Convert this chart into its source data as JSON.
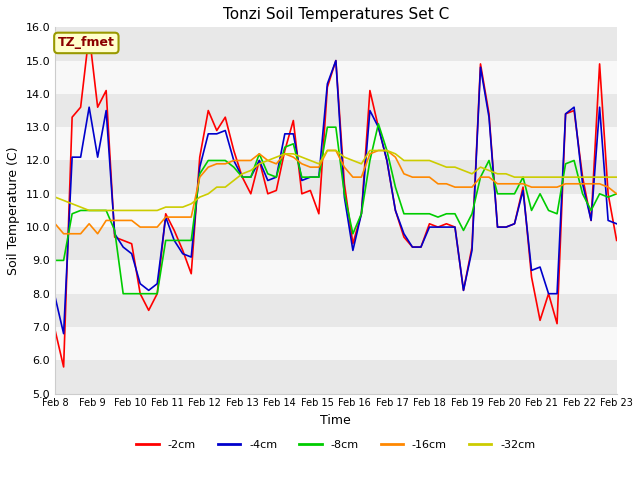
{
  "title": "Tonzi Soil Temperatures Set C",
  "xlabel": "Time",
  "ylabel": "Soil Temperature (C)",
  "ylim": [
    5.0,
    16.0
  ],
  "yticks": [
    5.0,
    6.0,
    7.0,
    8.0,
    9.0,
    10.0,
    11.0,
    12.0,
    13.0,
    14.0,
    15.0,
    16.0
  ],
  "xtick_labels": [
    "Feb 8",
    "Feb 9",
    "Feb 10",
    "Feb 11",
    "Feb 12",
    "Feb 13",
    "Feb 14",
    "Feb 15",
    "Feb 16",
    "Feb 17",
    "Feb 18",
    "Feb 19",
    "Feb 20",
    "Feb 21",
    "Feb 22",
    "Feb 23"
  ],
  "fig_bg_color": "#ffffff",
  "plot_bg_color": "#ffffff",
  "band_color1": "#e8e8e8",
  "band_color2": "#f8f8f8",
  "annotation_text": "TZ_fmet",
  "annotation_bg": "#ffffcc",
  "annotation_fg": "#8b0000",
  "annotation_border": "#999900",
  "legend_entries": [
    "-2cm",
    "-4cm",
    "-8cm",
    "-16cm",
    "-32cm"
  ],
  "legend_colors": [
    "#ff0000",
    "#0000cc",
    "#00cc00",
    "#ff8800",
    "#cccc00"
  ],
  "series": {
    "neg2cm": [
      6.9,
      5.8,
      13.3,
      13.6,
      15.8,
      13.6,
      14.1,
      9.7,
      9.6,
      9.5,
      8.0,
      7.5,
      8.0,
      10.4,
      9.9,
      9.3,
      8.6,
      12.1,
      13.5,
      12.9,
      13.3,
      12.3,
      11.5,
      11.0,
      12.0,
      11.0,
      11.1,
      12.3,
      13.2,
      11.0,
      11.1,
      10.4,
      14.2,
      15.0,
      11.3,
      9.5,
      10.4,
      14.1,
      13.0,
      12.0,
      10.5,
      9.7,
      9.4,
      9.4,
      10.1,
      10.0,
      10.1,
      10.0,
      8.1,
      9.4,
      14.9,
      13.4,
      10.0,
      10.0,
      10.1,
      11.2,
      8.5,
      7.2,
      8.0,
      7.1,
      13.4,
      13.5,
      11.5,
      10.2,
      14.9,
      11.0,
      9.6
    ],
    "neg4cm": [
      7.9,
      6.8,
      12.1,
      12.1,
      13.6,
      12.1,
      13.5,
      9.8,
      9.4,
      9.2,
      8.3,
      8.1,
      8.3,
      10.3,
      9.6,
      9.2,
      9.1,
      11.8,
      12.8,
      12.8,
      12.9,
      12.0,
      11.5,
      11.5,
      12.0,
      11.4,
      11.5,
      12.8,
      12.8,
      11.4,
      11.5,
      11.5,
      14.3,
      15.0,
      10.9,
      9.3,
      10.4,
      13.5,
      13.0,
      12.0,
      10.5,
      9.8,
      9.4,
      9.4,
      10.0,
      10.0,
      10.0,
      10.0,
      8.1,
      9.3,
      14.8,
      13.3,
      10.0,
      10.0,
      10.1,
      11.1,
      8.7,
      8.8,
      8.0,
      8.0,
      13.4,
      13.6,
      11.3,
      10.2,
      13.6,
      10.2,
      10.1
    ],
    "neg8cm": [
      9.0,
      9.0,
      10.4,
      10.5,
      10.5,
      10.5,
      10.5,
      9.9,
      8.0,
      8.0,
      8.0,
      8.0,
      8.0,
      9.6,
      9.6,
      9.6,
      9.6,
      11.6,
      12.0,
      12.0,
      12.0,
      11.8,
      11.5,
      11.5,
      12.2,
      11.6,
      11.5,
      12.4,
      12.5,
      11.5,
      11.5,
      11.5,
      13.0,
      13.0,
      11.0,
      9.8,
      10.4,
      12.0,
      13.1,
      12.3,
      11.2,
      10.4,
      10.4,
      10.4,
      10.4,
      10.3,
      10.4,
      10.4,
      9.9,
      10.4,
      11.5,
      12.0,
      11.0,
      11.0,
      11.0,
      11.5,
      10.5,
      11.0,
      10.5,
      10.4,
      11.9,
      12.0,
      11.0,
      10.5,
      11.0,
      10.9,
      11.0
    ],
    "neg16cm": [
      10.1,
      9.8,
      9.8,
      9.8,
      10.1,
      9.8,
      10.2,
      10.2,
      10.2,
      10.2,
      10.0,
      10.0,
      10.0,
      10.3,
      10.3,
      10.3,
      10.3,
      11.5,
      11.8,
      11.9,
      11.9,
      12.0,
      12.0,
      12.0,
      12.2,
      12.0,
      11.9,
      12.2,
      12.1,
      11.9,
      11.8,
      11.8,
      12.3,
      12.3,
      11.8,
      11.5,
      11.5,
      12.2,
      12.3,
      12.3,
      12.1,
      11.6,
      11.5,
      11.5,
      11.5,
      11.3,
      11.3,
      11.2,
      11.2,
      11.2,
      11.5,
      11.5,
      11.3,
      11.3,
      11.3,
      11.3,
      11.2,
      11.2,
      11.2,
      11.2,
      11.3,
      11.3,
      11.3,
      11.3,
      11.3,
      11.2,
      11.0
    ],
    "neg32cm": [
      10.9,
      10.8,
      10.7,
      10.6,
      10.5,
      10.5,
      10.5,
      10.5,
      10.5,
      10.5,
      10.5,
      10.5,
      10.5,
      10.6,
      10.6,
      10.6,
      10.7,
      10.9,
      11.0,
      11.2,
      11.2,
      11.4,
      11.6,
      11.7,
      11.9,
      12.0,
      12.1,
      12.2,
      12.2,
      12.1,
      12.0,
      11.9,
      12.3,
      12.3,
      12.1,
      12.0,
      11.9,
      12.3,
      12.3,
      12.3,
      12.2,
      12.0,
      12.0,
      12.0,
      12.0,
      11.9,
      11.8,
      11.8,
      11.7,
      11.6,
      11.8,
      11.7,
      11.6,
      11.6,
      11.5,
      11.5,
      11.5,
      11.5,
      11.5,
      11.5,
      11.5,
      11.5,
      11.5,
      11.5,
      11.5,
      11.5,
      11.5
    ]
  },
  "n_points": 67,
  "x_start": 0,
  "x_end": 15,
  "xtick_positions": [
    0,
    1,
    2,
    3,
    4,
    5,
    6,
    7,
    8,
    9,
    10,
    11,
    12,
    13,
    14,
    15
  ]
}
